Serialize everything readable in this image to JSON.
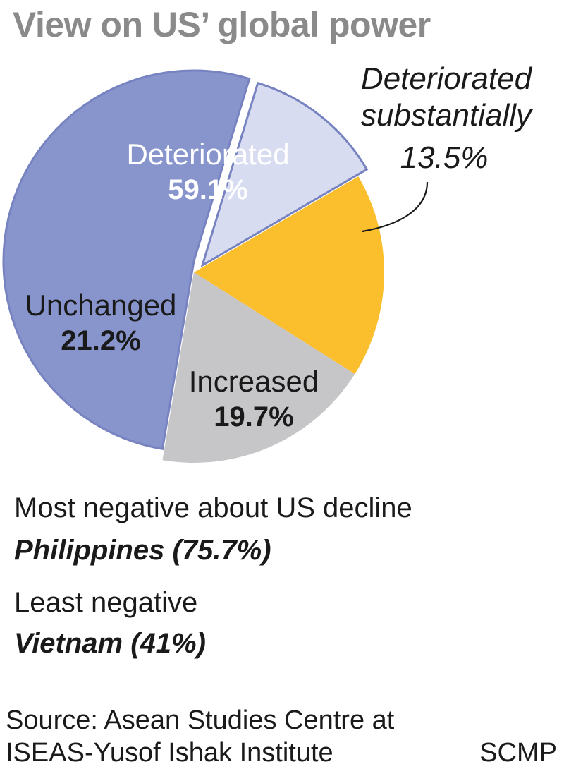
{
  "title": "View on US’ global power",
  "chart_data": {
    "type": "pie",
    "slices": [
      {
        "name": "Deteriorated",
        "value": 59.1,
        "label": "59.1%",
        "color": "#8895cc"
      },
      {
        "name": "Deteriorated substantially",
        "value": 13.5,
        "label": "13.5%",
        "color": "#d8dcf0"
      },
      {
        "name": "Increased",
        "value": 19.7,
        "label": "19.7%",
        "color": "#fbbf2e"
      },
      {
        "name": "Unchanged",
        "value": 21.2,
        "label": "21.2%",
        "color": "#c6c6c9"
      }
    ],
    "callout": {
      "line1": "Deteriorated",
      "line2": "substantially",
      "value": "13.5%"
    }
  },
  "notes": {
    "most_heading": "Most negative about US decline",
    "most_value": "Philippines (75.7%)",
    "least_heading": "Least negative",
    "least_value": "Vietnam (41%)"
  },
  "source": {
    "line1": "Source: Asean Studies Centre at",
    "line2": "ISEAS-Yusof Ishak Institute"
  },
  "credit": "SCMP",
  "colors": {
    "title": "#8a8a8a",
    "slice_outline": "#7783c0"
  }
}
